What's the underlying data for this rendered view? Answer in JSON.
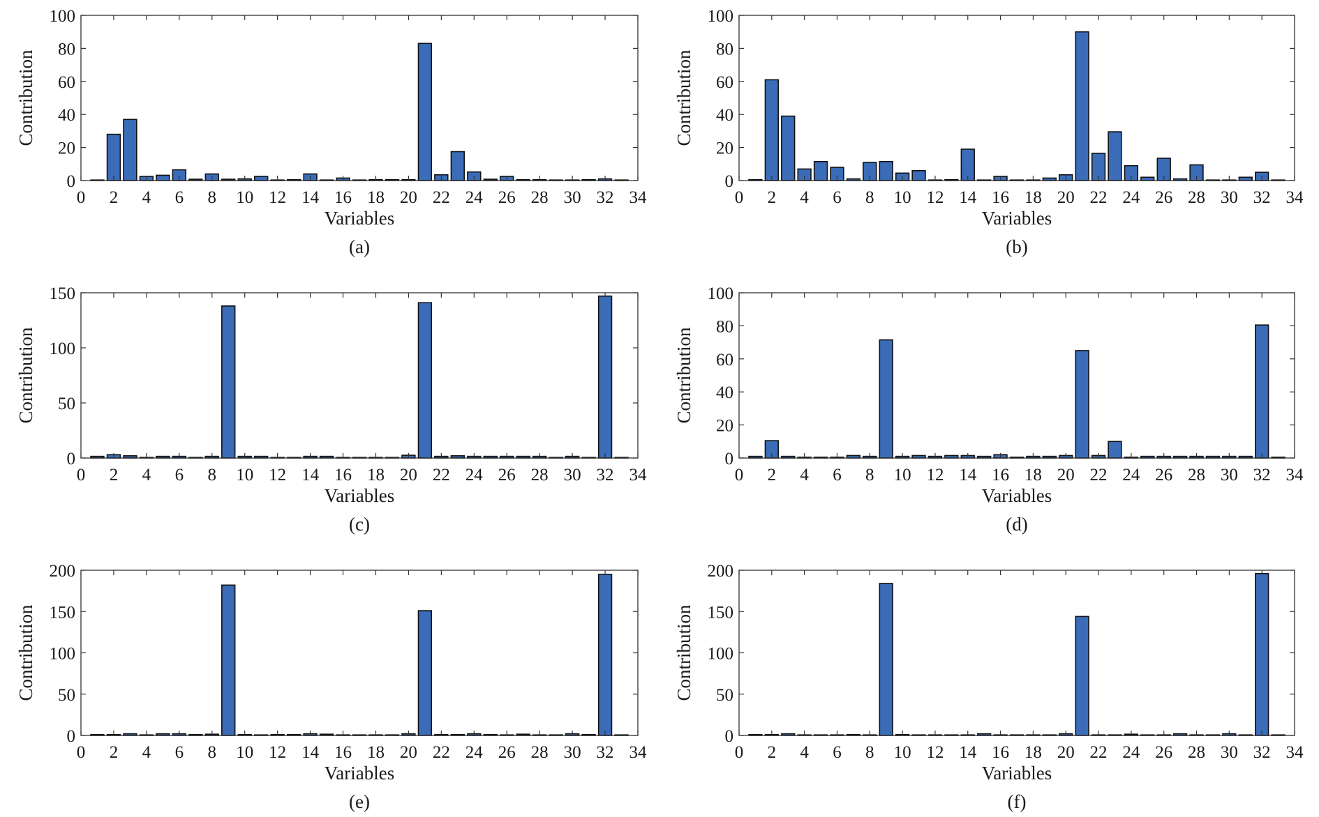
{
  "figure": {
    "bar_color": "#3a6cb8",
    "edge_color": "#111111"
  },
  "chart_data": [
    {
      "type": "bar",
      "caption": "(a)",
      "xlabel": "Variables",
      "ylabel": "Contribution",
      "xlim": [
        0,
        34
      ],
      "ylim": [
        0,
        100
      ],
      "xticks": [
        0,
        2,
        4,
        6,
        8,
        10,
        12,
        14,
        16,
        18,
        20,
        22,
        24,
        26,
        28,
        30,
        32,
        34
      ],
      "yticks": [
        0,
        20,
        40,
        60,
        80,
        100
      ],
      "x": [
        1,
        2,
        3,
        4,
        5,
        6,
        7,
        8,
        9,
        10,
        11,
        12,
        13,
        14,
        15,
        16,
        17,
        18,
        19,
        20,
        21,
        22,
        23,
        24,
        25,
        26,
        27,
        28,
        29,
        30,
        31,
        32,
        33
      ],
      "values": [
        0.2,
        28,
        37,
        2.5,
        3.2,
        6.5,
        0.8,
        4,
        0.8,
        1,
        2.5,
        0.2,
        0.5,
        4,
        0.2,
        1.5,
        0.2,
        0.5,
        0.5,
        0.5,
        83,
        3.5,
        17.5,
        5.2,
        0.8,
        2.5,
        0.5,
        0.5,
        0.2,
        0.2,
        0.5,
        1,
        0.2
      ]
    },
    {
      "type": "bar",
      "caption": "(b)",
      "xlabel": "Variables",
      "ylabel": "Contribution",
      "xlim": [
        0,
        34
      ],
      "ylim": [
        0,
        100
      ],
      "xticks": [
        0,
        2,
        4,
        6,
        8,
        10,
        12,
        14,
        16,
        18,
        20,
        22,
        24,
        26,
        28,
        30,
        32,
        34
      ],
      "yticks": [
        0,
        20,
        40,
        60,
        80,
        100
      ],
      "x": [
        1,
        2,
        3,
        4,
        5,
        6,
        7,
        8,
        9,
        10,
        11,
        12,
        13,
        14,
        15,
        16,
        17,
        18,
        19,
        20,
        21,
        22,
        23,
        24,
        25,
        26,
        27,
        28,
        29,
        30,
        31,
        32,
        33
      ],
      "values": [
        0.5,
        61,
        39,
        7,
        11.5,
        8,
        1,
        11,
        11.5,
        4.5,
        6,
        0,
        0.5,
        19,
        0,
        2.5,
        0,
        0,
        1.5,
        3.5,
        90,
        16.5,
        29.5,
        9,
        2,
        13.5,
        1,
        9.5,
        0,
        0,
        2,
        5,
        0
      ]
    },
    {
      "type": "bar",
      "caption": "(c)",
      "xlabel": "Variables",
      "ylabel": "Contribution",
      "xlim": [
        0,
        34
      ],
      "ylim": [
        0,
        150
      ],
      "xticks": [
        0,
        2,
        4,
        6,
        8,
        10,
        12,
        14,
        16,
        18,
        20,
        22,
        24,
        26,
        28,
        30,
        32,
        34
      ],
      "yticks": [
        0,
        50,
        100,
        150
      ],
      "x": [
        1,
        2,
        3,
        4,
        5,
        6,
        7,
        8,
        9,
        10,
        11,
        12,
        13,
        14,
        15,
        16,
        17,
        18,
        19,
        20,
        21,
        22,
        23,
        24,
        25,
        26,
        27,
        28,
        29,
        30,
        31,
        32,
        33
      ],
      "values": [
        1.5,
        3,
        2,
        0.5,
        1.5,
        1.5,
        0.5,
        1.5,
        138,
        1.5,
        1.5,
        0.5,
        0.5,
        1.5,
        1.5,
        0.5,
        0.5,
        0.5,
        0.5,
        2.5,
        141,
        1.5,
        2,
        1.5,
        1.5,
        1.5,
        1.5,
        1.5,
        0.5,
        1.5,
        0.5,
        147,
        0.5
      ]
    },
    {
      "type": "bar",
      "caption": "(d)",
      "xlabel": "Variables",
      "ylabel": "Contribution",
      "xlim": [
        0,
        34
      ],
      "ylim": [
        0,
        100
      ],
      "xticks": [
        0,
        2,
        4,
        6,
        8,
        10,
        12,
        14,
        16,
        18,
        20,
        22,
        24,
        26,
        28,
        30,
        32,
        34
      ],
      "yticks": [
        0,
        20,
        40,
        60,
        80,
        100
      ],
      "x": [
        1,
        2,
        3,
        4,
        5,
        6,
        7,
        8,
        9,
        10,
        11,
        12,
        13,
        14,
        15,
        16,
        17,
        18,
        19,
        20,
        21,
        22,
        23,
        24,
        25,
        26,
        27,
        28,
        29,
        30,
        31,
        32,
        33
      ],
      "values": [
        1,
        10.5,
        1,
        0.5,
        0.5,
        0.5,
        1.5,
        1,
        71.5,
        1,
        1.5,
        1,
        1.5,
        1.5,
        1,
        2,
        0.5,
        1,
        1,
        1.5,
        65,
        1.5,
        10,
        0.5,
        1,
        1,
        1,
        1,
        1,
        1,
        1,
        80.5,
        0.5
      ]
    },
    {
      "type": "bar",
      "caption": "(e)",
      "xlabel": "Variables",
      "ylabel": "Contribution",
      "xlim": [
        0,
        34
      ],
      "ylim": [
        0,
        200
      ],
      "xticks": [
        0,
        2,
        4,
        6,
        8,
        10,
        12,
        14,
        16,
        18,
        20,
        22,
        24,
        26,
        28,
        30,
        32,
        34
      ],
      "yticks": [
        0,
        50,
        100,
        150,
        200
      ],
      "x": [
        1,
        2,
        3,
        4,
        5,
        6,
        7,
        8,
        9,
        10,
        11,
        12,
        13,
        14,
        15,
        16,
        17,
        18,
        19,
        20,
        21,
        22,
        23,
        24,
        25,
        26,
        27,
        28,
        29,
        30,
        31,
        32,
        33
      ],
      "values": [
        1,
        1,
        2,
        0.5,
        2,
        2,
        1,
        1.5,
        182,
        1,
        0.5,
        1,
        1,
        2,
        1.5,
        0.5,
        0.5,
        0.5,
        0.5,
        2,
        151,
        1,
        1,
        2,
        1,
        0.5,
        1.5,
        0.5,
        0.5,
        2,
        1,
        195,
        0.5
      ]
    },
    {
      "type": "bar",
      "caption": "(f)",
      "xlabel": "Variables",
      "ylabel": "Contribution",
      "xlim": [
        0,
        34
      ],
      "ylim": [
        0,
        200
      ],
      "xticks": [
        0,
        2,
        4,
        6,
        8,
        10,
        12,
        14,
        16,
        18,
        20,
        22,
        24,
        26,
        28,
        30,
        32,
        34
      ],
      "yticks": [
        0,
        50,
        100,
        150,
        200
      ],
      "x": [
        1,
        2,
        3,
        4,
        5,
        6,
        7,
        8,
        9,
        10,
        11,
        12,
        13,
        14,
        15,
        16,
        17,
        18,
        19,
        20,
        21,
        22,
        23,
        24,
        25,
        26,
        27,
        28,
        29,
        30,
        31,
        32,
        33
      ],
      "values": [
        1,
        1,
        2,
        0.5,
        0.5,
        0.5,
        1,
        0.5,
        184,
        1,
        0.5,
        0.5,
        0.5,
        0.5,
        2,
        0.5,
        0.5,
        0.5,
        0.5,
        2,
        144,
        0.5,
        0.5,
        1.5,
        0.5,
        0.5,
        2,
        0.5,
        0.5,
        2,
        0.5,
        196,
        0.5
      ]
    }
  ]
}
